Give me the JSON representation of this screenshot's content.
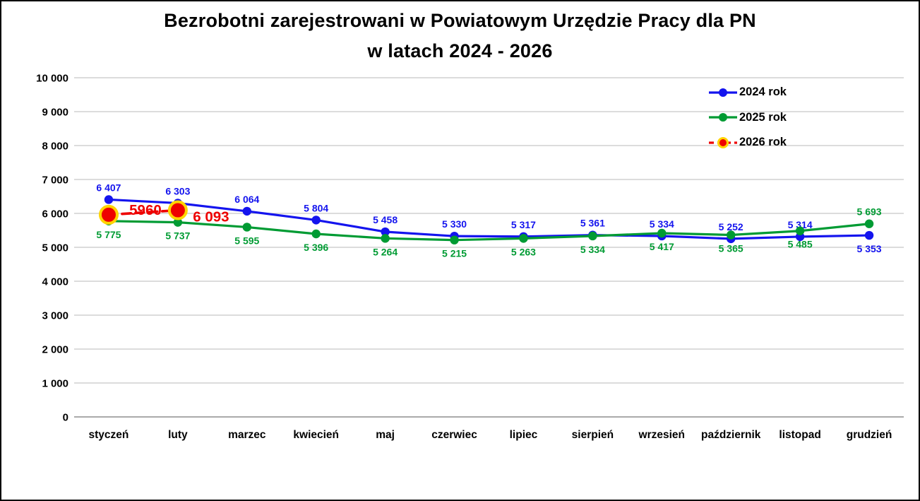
{
  "title": {
    "line1": "Bezrobotni zarejestrowani w Powiatowym Urzędzie Pracy dla PN",
    "line2": "w latach 2024 - 2026"
  },
  "colors": {
    "series_2024": "#1414EE",
    "series_2025": "#009B33",
    "series_2026": "#EE0000",
    "marker_ring_2026": "#FFD400",
    "gridline": "#C8C8C8",
    "axis_text": "#000000",
    "background": "#FFFFFF"
  },
  "chart_data": {
    "type": "line",
    "title": "Bezrobotni zarejestrowani w Powiatowym Urzędzie Pracy dla PN w latach 2024 - 2026",
    "categories": [
      "styczeń",
      "luty",
      "marzec",
      "kwiecień",
      "maj",
      "czerwiec",
      "lipiec",
      "sierpień",
      "wrzesień",
      "październik",
      "listopad",
      "grudzień"
    ],
    "y_axis": {
      "min": 0,
      "max": 10000,
      "step": 1000,
      "tick_labels": [
        "0",
        "1 000",
        "2 000",
        "3 000",
        "4 000",
        "5 000",
        "6 000",
        "7 000",
        "8 000",
        "9 000",
        "10 000"
      ]
    },
    "grid": "horizontal",
    "legend_position": "top-right",
    "series": [
      {
        "name": "2024 rok",
        "color": "#1414EE",
        "line_style": "solid",
        "marker": "circle",
        "values": [
          6407,
          6303,
          6064,
          5804,
          5458,
          5330,
          5317,
          5361,
          5334,
          5252,
          5314,
          5353
        ],
        "labels": [
          "6 407",
          "6 303",
          "6 064",
          "5 804",
          "5 458",
          "5 330",
          "5 317",
          "5 361",
          "5 334",
          "5 252",
          "5 314",
          "5 353"
        ],
        "label_side": "above",
        "label_side_overrides": {
          "11": "below"
        }
      },
      {
        "name": "2025 rok",
        "color": "#009B33",
        "line_style": "solid",
        "marker": "circle",
        "values": [
          5775,
          5737,
          5595,
          5396,
          5264,
          5215,
          5263,
          5334,
          5417,
          5365,
          5485,
          5693
        ],
        "labels": [
          "5 775",
          "5 737",
          "5 595",
          "5 396",
          "5 264",
          "5 215",
          "5 263",
          "5 334",
          "5 417",
          "5 365",
          "5 485",
          "5 693"
        ],
        "label_side": "below",
        "label_side_overrides": {
          "11": "above"
        }
      },
      {
        "name": "2026 rok",
        "color": "#EE0000",
        "line_style": "dashed",
        "marker": "circle-large",
        "marker_ring_color": "#FFD400",
        "emphasis": true,
        "values": [
          5960,
          6093,
          null,
          null,
          null,
          null,
          null,
          null,
          null,
          null,
          null,
          null
        ],
        "labels": [
          "5960",
          "6 093"
        ],
        "label_color": "#EE0000",
        "label_offsets": [
          {
            "dx": 52,
            "dy": -7
          },
          {
            "dx": 47,
            "dy": 9
          }
        ]
      }
    ]
  }
}
